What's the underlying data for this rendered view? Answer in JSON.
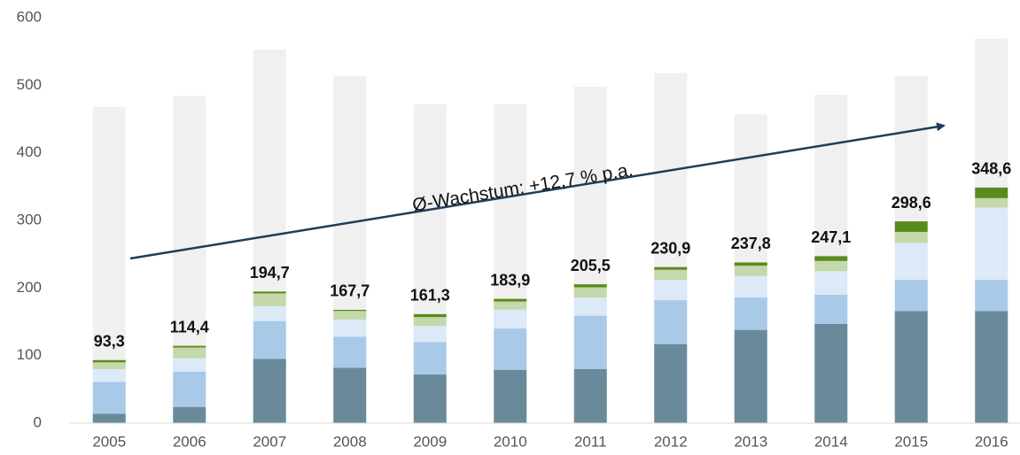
{
  "chart_data": {
    "type": "bar",
    "stacked": true,
    "categories": [
      "2005",
      "2006",
      "2007",
      "2008",
      "2009",
      "2010",
      "2011",
      "2012",
      "2013",
      "2014",
      "2015",
      "2016"
    ],
    "background": {
      "color": "#f0f0f0",
      "values": [
        468,
        484,
        553,
        514,
        472,
        472,
        498,
        518,
        457,
        486,
        514,
        569
      ]
    },
    "series": [
      {
        "color": "#6a8a9c",
        "values": [
          14,
          24,
          95,
          82,
          72,
          79,
          80,
          117,
          138,
          147,
          166,
          166
        ]
      },
      {
        "color": "#a9c9e9",
        "values": [
          47,
          52,
          56,
          46,
          48,
          61,
          79,
          65,
          48,
          43,
          46,
          46
        ]
      },
      {
        "color": "#dce9f6",
        "values": [
          19,
          20,
          22,
          25,
          24,
          28,
          27,
          30,
          32,
          35,
          55,
          107
        ]
      },
      {
        "color": "#c4d8ab",
        "values": [
          10,
          16,
          19,
          13,
          13,
          12,
          15,
          15,
          15,
          15,
          16,
          14
        ]
      },
      {
        "color": "#5a8b1d",
        "values": [
          3.3,
          2.4,
          2.7,
          1.7,
          4.3,
          3.9,
          4.5,
          3.9,
          4.8,
          7.1,
          15.6,
          15.6
        ]
      }
    ],
    "totals": [
      93.3,
      114.4,
      194.7,
      167.7,
      161.3,
      183.9,
      205.5,
      230.9,
      237.8,
      247.1,
      298.6,
      348.6
    ],
    "total_labels": [
      "93,3",
      "114,4",
      "194,7",
      "167,7",
      "161,3",
      "183,9",
      "205,5",
      "230,9",
      "237,8",
      "247,1",
      "298,6",
      "348,6"
    ],
    "annotation": "Ø-Wachstum:  +12,7 % p.a.",
    "ylim": [
      0,
      600
    ],
    "yticks": [
      0,
      100,
      200,
      300,
      400,
      500,
      600
    ],
    "grid": false
  }
}
